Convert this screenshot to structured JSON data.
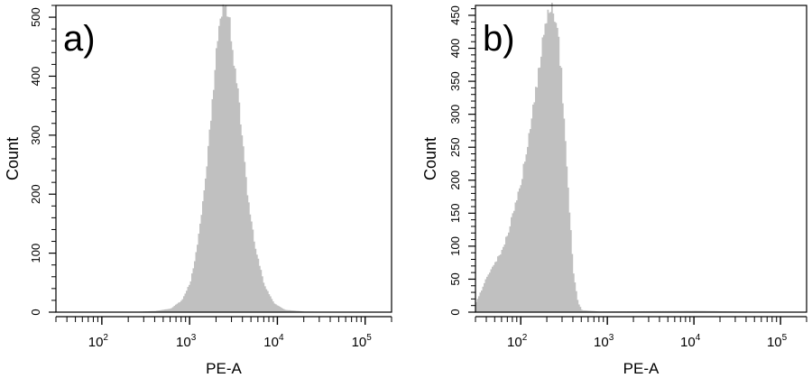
{
  "chart_data": [
    {
      "type": "bar",
      "panel_label": "a)",
      "xlabel": "PE-A",
      "ylabel": "Count",
      "x_scale": "log",
      "xlim": [
        30,
        200000
      ],
      "ylim": [
        0,
        520
      ],
      "x_ticks": [
        {
          "value": 100,
          "base": "10",
          "exp": "2"
        },
        {
          "value": 1000,
          "base": "10",
          "exp": "3"
        },
        {
          "value": 10000,
          "base": "10",
          "exp": "4"
        },
        {
          "value": 100000,
          "base": "10",
          "exp": "5"
        }
      ],
      "y_ticks": [
        "0",
        "100",
        "200",
        "300",
        "400",
        "500"
      ],
      "fill_color": "#c0c0c0",
      "bins": [
        {
          "x": 200,
          "count": 0
        },
        {
          "x": 400,
          "count": 2
        },
        {
          "x": 600,
          "count": 6
        },
        {
          "x": 800,
          "count": 20
        },
        {
          "x": 1000,
          "count": 50
        },
        {
          "x": 1200,
          "count": 110
        },
        {
          "x": 1500,
          "count": 230
        },
        {
          "x": 1800,
          "count": 360
        },
        {
          "x": 2000,
          "count": 460
        },
        {
          "x": 2200,
          "count": 500
        },
        {
          "x": 2500,
          "count": 520
        },
        {
          "x": 2800,
          "count": 490
        },
        {
          "x": 3200,
          "count": 420
        },
        {
          "x": 3800,
          "count": 320
        },
        {
          "x": 4500,
          "count": 200
        },
        {
          "x": 5500,
          "count": 110
        },
        {
          "x": 7000,
          "count": 45
        },
        {
          "x": 9000,
          "count": 15
        },
        {
          "x": 12000,
          "count": 4
        },
        {
          "x": 20000,
          "count": 1
        },
        {
          "x": 100000,
          "count": 0
        }
      ]
    },
    {
      "type": "bar",
      "panel_label": "b)",
      "xlabel": "PE-A",
      "ylabel": "Count",
      "x_scale": "log",
      "xlim": [
        30,
        200000
      ],
      "ylim": [
        0,
        465
      ],
      "x_ticks": [
        {
          "value": 100,
          "base": "10",
          "exp": "2"
        },
        {
          "value": 1000,
          "base": "10",
          "exp": "3"
        },
        {
          "value": 10000,
          "base": "10",
          "exp": "4"
        },
        {
          "value": 100000,
          "base": "10",
          "exp": "5"
        }
      ],
      "y_ticks": [
        "0",
        "50",
        "100",
        "150",
        "200",
        "250",
        "300",
        "350",
        "400",
        "450"
      ],
      "fill_color": "#c0c0c0",
      "bins": [
        {
          "x": 30,
          "count": 15
        },
        {
          "x": 35,
          "count": 35
        },
        {
          "x": 40,
          "count": 55
        },
        {
          "x": 50,
          "count": 75
        },
        {
          "x": 60,
          "count": 95
        },
        {
          "x": 70,
          "count": 120
        },
        {
          "x": 80,
          "count": 150
        },
        {
          "x": 90,
          "count": 175
        },
        {
          "x": 100,
          "count": 200
        },
        {
          "x": 120,
          "count": 260
        },
        {
          "x": 140,
          "count": 320
        },
        {
          "x": 160,
          "count": 370
        },
        {
          "x": 180,
          "count": 420
        },
        {
          "x": 200,
          "count": 445
        },
        {
          "x": 230,
          "count": 460
        },
        {
          "x": 260,
          "count": 430
        },
        {
          "x": 290,
          "count": 360
        },
        {
          "x": 320,
          "count": 260
        },
        {
          "x": 360,
          "count": 150
        },
        {
          "x": 400,
          "count": 60
        },
        {
          "x": 450,
          "count": 15
        },
        {
          "x": 500,
          "count": 3
        },
        {
          "x": 800,
          "count": 1
        },
        {
          "x": 10000,
          "count": 2
        },
        {
          "x": 100000,
          "count": 0
        }
      ]
    }
  ]
}
